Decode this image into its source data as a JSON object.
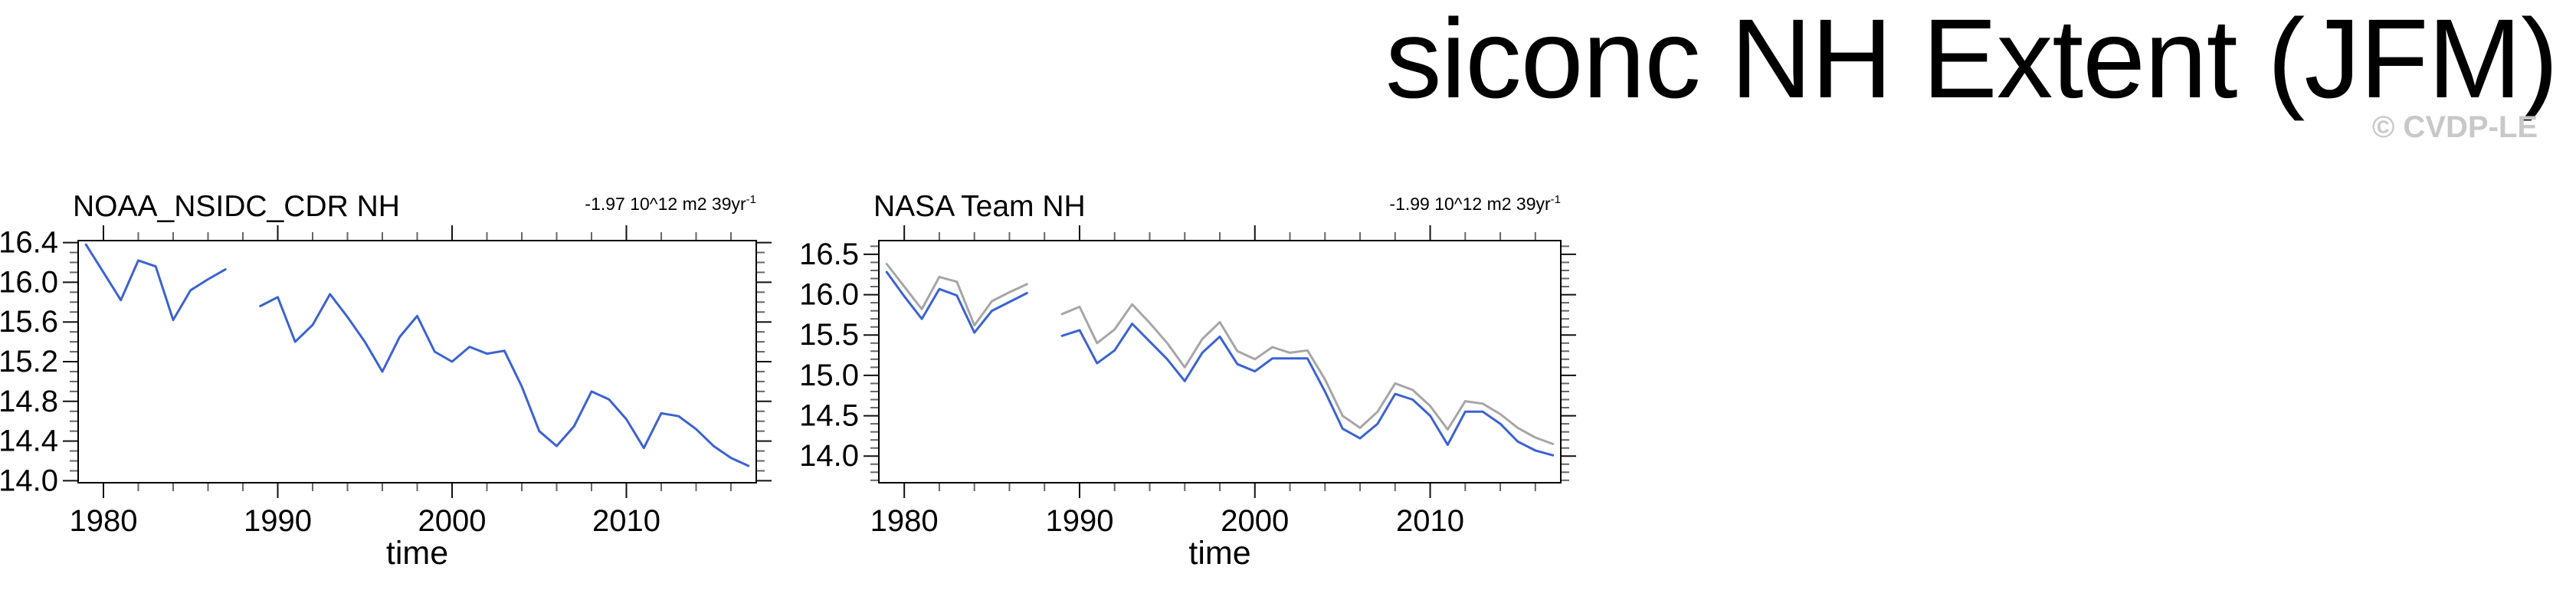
{
  "page": {
    "title": "siconc NH Extent (JFM)",
    "watermark": "© CVDP-LE"
  },
  "chart_data": [
    {
      "type": "line",
      "title": "NOAA_NSIDC_CDR NH",
      "trend_value": "-1.97 10^12 m2 39yr",
      "trend_exponent": "-1",
      "xlabel": "time",
      "grid": false,
      "legend": "none",
      "xlim": [
        1978.55,
        2017.45
      ],
      "ylim": [
        13.98,
        16.42
      ],
      "x_major_ticks": [
        1980,
        1990,
        2000,
        2010
      ],
      "x_tick_labels": [
        "1980",
        "1990",
        "2000",
        "2010"
      ],
      "x_minor_step": 2,
      "y_major_ticks": [
        14.0,
        14.4,
        14.8,
        15.2,
        15.6,
        16.0,
        16.4
      ],
      "y_tick_labels": [
        "14.0",
        "14.4",
        "14.8",
        "15.2",
        "15.6",
        "16.0",
        "16.4"
      ],
      "y_minor_step": 0.1,
      "x": [
        1979,
        1980,
        1981,
        1982,
        1983,
        1984,
        1985,
        1986,
        1987,
        1988,
        1989,
        1990,
        1991,
        1992,
        1993,
        1994,
        1995,
        1996,
        1997,
        1998,
        1999,
        2000,
        2001,
        2002,
        2003,
        2004,
        2005,
        2006,
        2007,
        2008,
        2009,
        2010,
        2011,
        2012,
        2013,
        2014,
        2015,
        2016,
        2017
      ],
      "series": [
        {
          "name": "NOAA_NSIDC_CDR",
          "color": "#3B62D2",
          "width": 3,
          "values": [
            16.38,
            16.1,
            15.82,
            16.22,
            16.16,
            15.62,
            15.92,
            16.03,
            16.13,
            null,
            15.76,
            15.85,
            15.4,
            15.57,
            15.88,
            15.65,
            15.4,
            15.1,
            15.45,
            15.66,
            15.3,
            15.2,
            15.35,
            15.28,
            15.31,
            14.95,
            14.5,
            14.35,
            14.55,
            14.9,
            14.82,
            14.62,
            14.33,
            14.68,
            14.65,
            14.52,
            14.35,
            14.23,
            14.15
          ]
        }
      ]
    },
    {
      "type": "line",
      "title": "NASA Team NH",
      "trend_value": "-1.99 10^12 m2 39yr",
      "trend_exponent": "-1",
      "xlabel": "time",
      "grid": false,
      "legend": "none",
      "xlim": [
        1978.55,
        2017.45
      ],
      "ylim": [
        13.67,
        16.67
      ],
      "x_major_ticks": [
        1980,
        1990,
        2000,
        2010
      ],
      "x_tick_labels": [
        "1980",
        "1990",
        "2000",
        "2010"
      ],
      "x_minor_step": 2,
      "y_major_ticks": [
        14.0,
        14.5,
        15.0,
        15.5,
        16.0,
        16.5
      ],
      "y_tick_labels": [
        "14.0",
        "14.5",
        "15.0",
        "15.5",
        "16.0",
        "16.5"
      ],
      "y_minor_step": 0.1,
      "x": [
        1979,
        1980,
        1981,
        1982,
        1983,
        1984,
        1985,
        1986,
        1987,
        1988,
        1989,
        1990,
        1991,
        1992,
        1993,
        1994,
        1995,
        1996,
        1997,
        1998,
        1999,
        2000,
        2001,
        2002,
        2003,
        2004,
        2005,
        2006,
        2007,
        2008,
        2009,
        2010,
        2011,
        2012,
        2013,
        2014,
        2015,
        2016,
        2017
      ],
      "series": [
        {
          "name": "NOAA_NSIDC_CDR reference",
          "color": "#A6A6A6",
          "width": 3,
          "values": [
            16.38,
            16.1,
            15.82,
            16.22,
            16.16,
            15.62,
            15.92,
            16.03,
            16.13,
            null,
            15.76,
            15.85,
            15.4,
            15.57,
            15.88,
            15.65,
            15.4,
            15.1,
            15.45,
            15.66,
            15.3,
            15.2,
            15.35,
            15.28,
            15.31,
            14.95,
            14.5,
            14.35,
            14.55,
            14.9,
            14.82,
            14.62,
            14.33,
            14.68,
            14.65,
            14.52,
            14.35,
            14.23,
            14.15
          ]
        },
        {
          "name": "NASA Team",
          "color": "#3B62D2",
          "width": 3,
          "values": [
            16.28,
            15.98,
            15.7,
            16.07,
            15.99,
            15.53,
            15.8,
            15.91,
            16.02,
            null,
            15.49,
            15.56,
            15.15,
            15.31,
            15.64,
            15.42,
            15.2,
            14.93,
            15.28,
            15.48,
            15.14,
            15.05,
            15.21,
            15.21,
            15.21,
            14.8,
            14.34,
            14.22,
            14.4,
            14.77,
            14.7,
            14.5,
            14.14,
            14.55,
            14.55,
            14.4,
            14.18,
            14.07,
            14.01
          ]
        }
      ]
    }
  ]
}
